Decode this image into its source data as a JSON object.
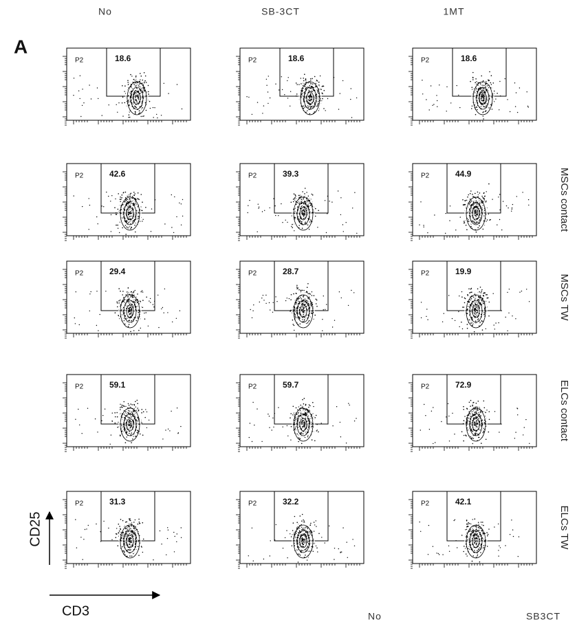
{
  "panel_label": "A",
  "columns": [
    "No",
    "SB-3CT",
    "1MT"
  ],
  "rows": [
    {
      "panels": [
        {
          "gate": "P2",
          "value": "18.6"
        },
        {
          "gate": "P2",
          "value": "18.6"
        },
        {
          "gate": "P2",
          "value": "18.6"
        }
      ]
    },
    {
      "label": "MSCs contact",
      "panels": [
        {
          "gate": "P2",
          "value": "42.6"
        },
        {
          "gate": "P2",
          "value": "39.3"
        },
        {
          "gate": "P2",
          "value": "44.9"
        }
      ]
    },
    {
      "label": "MSCs TW",
      "panels": [
        {
          "gate": "P2",
          "value": "29.4"
        },
        {
          "gate": "P2",
          "value": "28.7"
        },
        {
          "gate": "P2",
          "value": "19.9"
        }
      ]
    },
    {
      "label": "ELCs contact",
      "panels": [
        {
          "gate": "P2",
          "value": "59.1"
        },
        {
          "gate": "P2",
          "value": "59.7"
        },
        {
          "gate": "P2",
          "value": "72.9"
        }
      ]
    },
    {
      "label": "ELCs TW",
      "panels": [
        {
          "gate": "P2",
          "value": "31.3"
        },
        {
          "gate": "P2",
          "value": "32.2"
        },
        {
          "gate": "P2",
          "value": "42.1"
        }
      ]
    }
  ],
  "axes": {
    "y": "CD25",
    "x": "CD3"
  },
  "footer": [
    "No",
    "SB3CT"
  ]
}
